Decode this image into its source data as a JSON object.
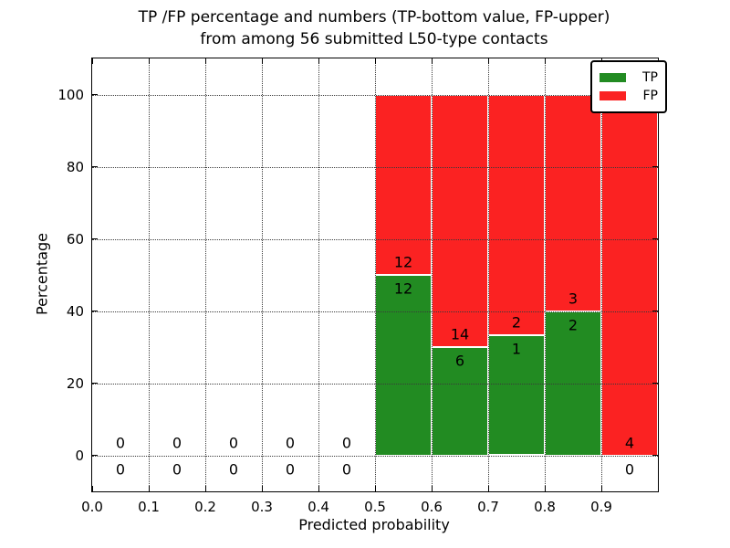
{
  "chart_data": {
    "type": "bar",
    "stacked": true,
    "title_line1": "TP /FP percentage and numbers (TP-bottom value, FP-upper)",
    "title_line2": "from among 56 submitted L50-type contacts",
    "xlabel": "Predicted probability",
    "ylabel": "Percentage",
    "xlim": [
      0.0,
      1.0
    ],
    "ylim": [
      -10,
      110
    ],
    "x_ticks": [
      {
        "value": 0.0,
        "label": "0.0"
      },
      {
        "value": 0.1,
        "label": "0.1"
      },
      {
        "value": 0.2,
        "label": "0.2"
      },
      {
        "value": 0.3,
        "label": "0.3"
      },
      {
        "value": 0.4,
        "label": "0.4"
      },
      {
        "value": 0.5,
        "label": "0.5"
      },
      {
        "value": 0.6,
        "label": "0.6"
      },
      {
        "value": 0.7,
        "label": "0.7"
      },
      {
        "value": 0.8,
        "label": "0.8"
      },
      {
        "value": 0.9,
        "label": "0.9"
      }
    ],
    "y_ticks": [
      {
        "value": 0,
        "label": "0"
      },
      {
        "value": 20,
        "label": "20"
      },
      {
        "value": 40,
        "label": "40"
      },
      {
        "value": 60,
        "label": "60"
      },
      {
        "value": 80,
        "label": "80"
      },
      {
        "value": 100,
        "label": "100"
      }
    ],
    "grid": {
      "style": "dotted",
      "color": "#3a3a3a",
      "drawn_on_top_of_bars": true
    },
    "bar_edge_color": "#ffffff",
    "total_contacts": 56,
    "legend_position": "upper right",
    "series": [
      {
        "name": "TP",
        "color": "#228b22"
      },
      {
        "name": "FP",
        "color": "#fb2222"
      }
    ],
    "bins": [
      {
        "x0": 0.0,
        "x1": 0.1,
        "tp": 0,
        "fp": 0,
        "tp_pct": 0,
        "fp_pct": 0
      },
      {
        "x0": 0.1,
        "x1": 0.2,
        "tp": 0,
        "fp": 0,
        "tp_pct": 0,
        "fp_pct": 0
      },
      {
        "x0": 0.2,
        "x1": 0.3,
        "tp": 0,
        "fp": 0,
        "tp_pct": 0,
        "fp_pct": 0
      },
      {
        "x0": 0.3,
        "x1": 0.4,
        "tp": 0,
        "fp": 0,
        "tp_pct": 0,
        "fp_pct": 0
      },
      {
        "x0": 0.4,
        "x1": 0.5,
        "tp": 0,
        "fp": 0,
        "tp_pct": 0,
        "fp_pct": 0
      },
      {
        "x0": 0.5,
        "x1": 0.6,
        "tp": 12,
        "fp": 12,
        "tp_pct": 50,
        "fp_pct": 50
      },
      {
        "x0": 0.6,
        "x1": 0.7,
        "tp": 6,
        "fp": 14,
        "tp_pct": 30,
        "fp_pct": 70
      },
      {
        "x0": 0.7,
        "x1": 0.8,
        "tp": 1,
        "fp": 2,
        "tp_pct": 33.33,
        "fp_pct": 66.67
      },
      {
        "x0": 0.8,
        "x1": 0.9,
        "tp": 2,
        "fp": 3,
        "tp_pct": 40,
        "fp_pct": 60
      },
      {
        "x0": 0.9,
        "x1": 1.0,
        "tp": 0,
        "fp": 4,
        "tp_pct": 0,
        "fp_pct": 100
      }
    ]
  }
}
